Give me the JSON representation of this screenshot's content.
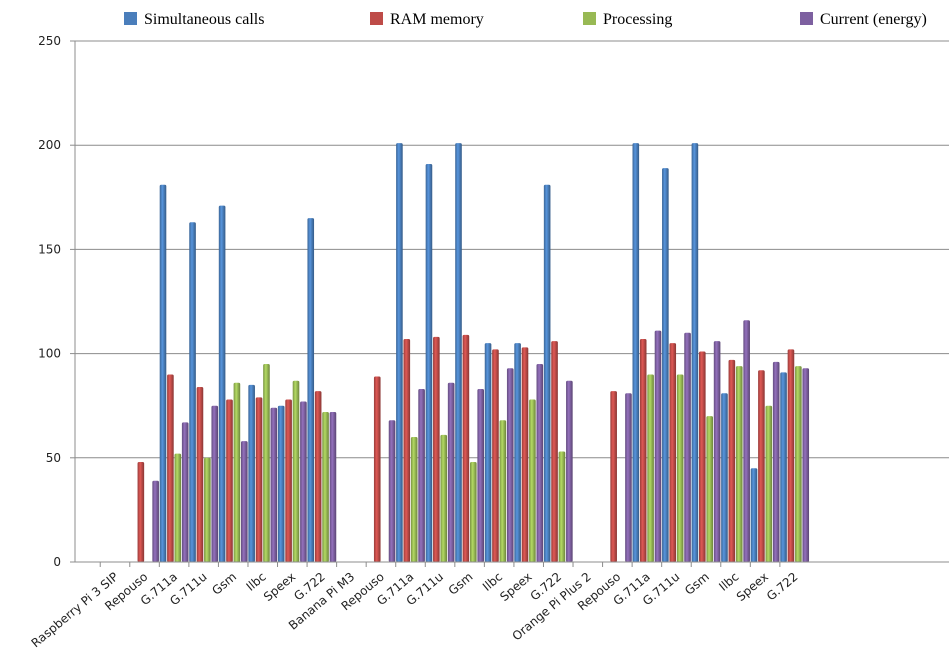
{
  "chart_data": {
    "type": "bar",
    "title": "",
    "xlabel": "",
    "ylabel": "",
    "ylim": [
      0,
      250
    ],
    "yticks": [
      0,
      50,
      100,
      150,
      200,
      250
    ],
    "grid": "horizontal",
    "legend_position": "top",
    "categories": [
      "Raspberry Pi 3 SIP",
      "Repouso",
      "G.711a",
      "G.711u",
      "Gsm",
      "Ilbc",
      "Speex",
      "G.722",
      "Banana Pi M3",
      "Repouso",
      "G.711a",
      "G.711u",
      "Gsm",
      "Ilbc",
      "Speex",
      "G.722",
      "Orange Pi Plus 2",
      "Repouso",
      "G.711a",
      "G.711u",
      "Gsm",
      "Ilbc",
      "Speex",
      "G.722"
    ],
    "series": [
      {
        "name": "Simultaneous calls",
        "color": "#4a7ebb",
        "values": [
          0,
          0,
          181,
          163,
          171,
          85,
          75,
          165,
          0,
          0,
          201,
          191,
          201,
          105,
          105,
          181,
          0,
          0,
          201,
          189,
          201,
          81,
          45,
          91
        ]
      },
      {
        "name": "RAM memory",
        "color": "#be4b48",
        "values": [
          0,
          48,
          90,
          84,
          78,
          79,
          78,
          82,
          0,
          89,
          107,
          108,
          109,
          102,
          103,
          106,
          0,
          82,
          107,
          105,
          101,
          97,
          92,
          102
        ]
      },
      {
        "name": "Processing",
        "color": "#98b954",
        "values": [
          0,
          0,
          52,
          50,
          86,
          95,
          87,
          72,
          0,
          0,
          60,
          61,
          48,
          68,
          78,
          53,
          0,
          0,
          90,
          90,
          70,
          94,
          75,
          94
        ]
      },
      {
        "name": "Current (energy)",
        "color": "#7d60a0",
        "values": [
          0,
          39,
          67,
          75,
          58,
          74,
          77,
          72,
          0,
          68,
          83,
          86,
          83,
          93,
          95,
          87,
          0,
          81,
          111,
          110,
          106,
          116,
          96,
          93
        ]
      }
    ]
  }
}
